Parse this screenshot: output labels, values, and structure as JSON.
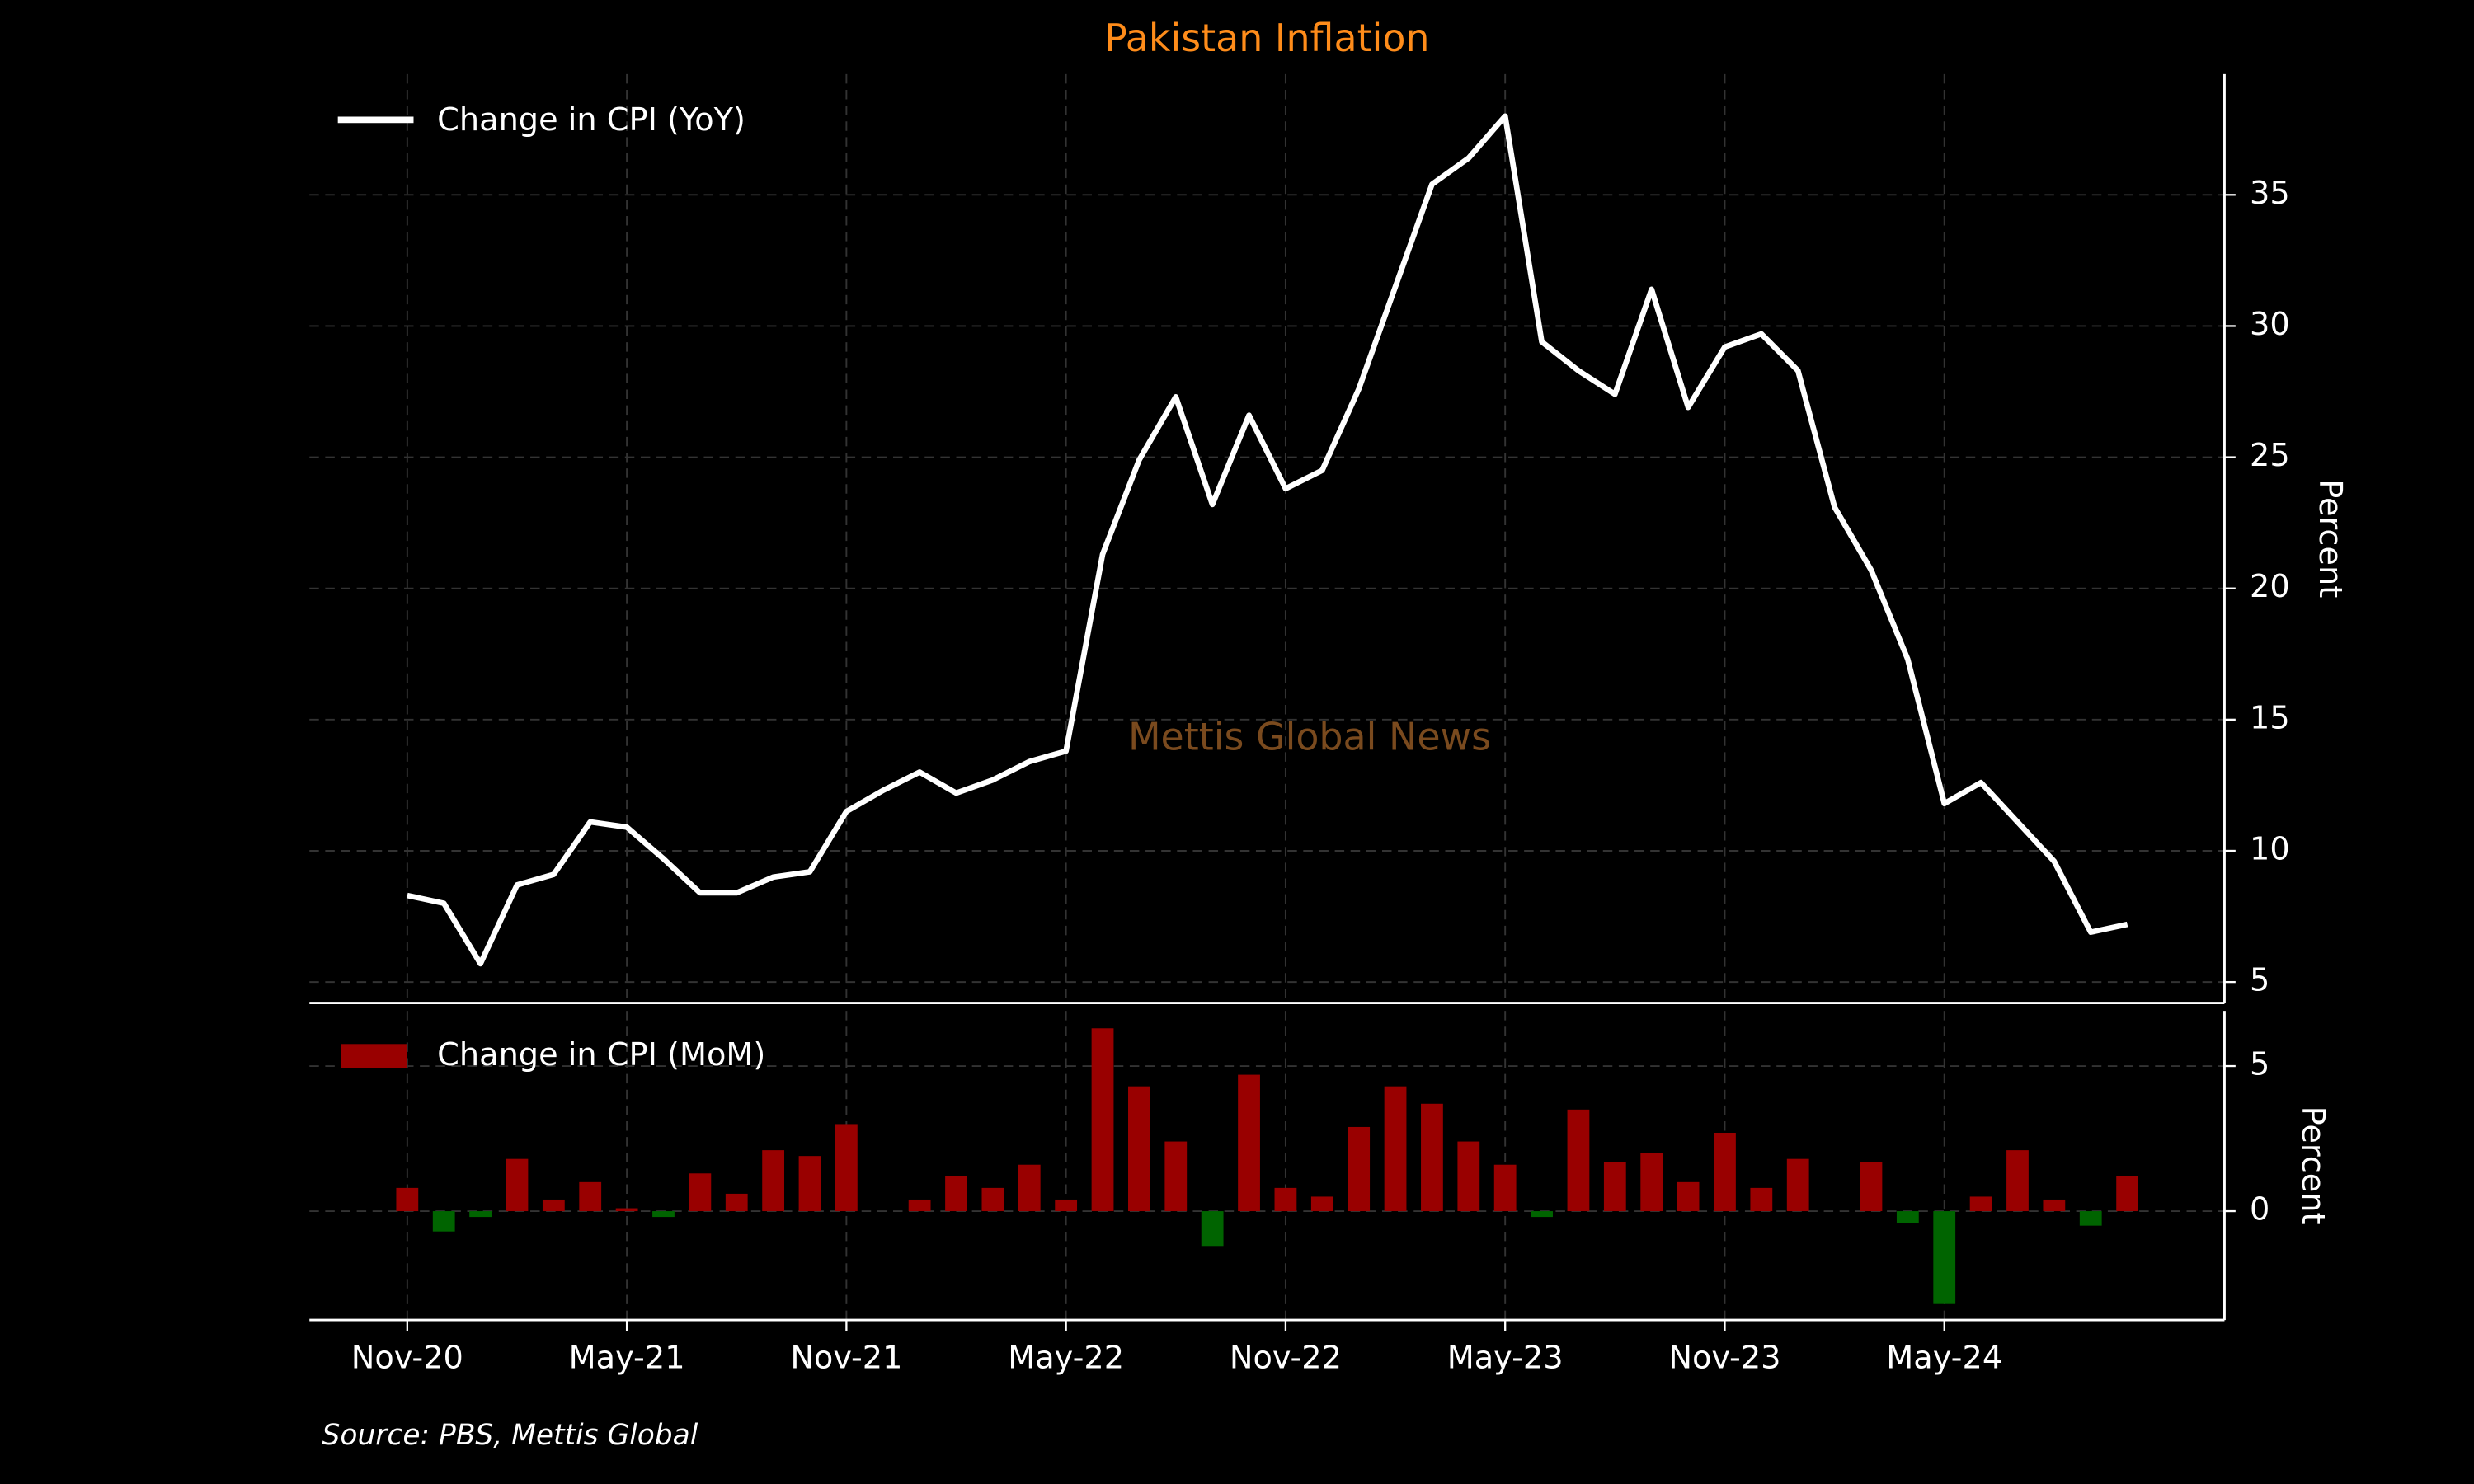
{
  "chart_data": [
    {
      "type": "line",
      "title": "Pakistan Inflation",
      "source": "Source: PBS, Mettis Global",
      "watermark": "Mettis Global News",
      "y_label": "Percent",
      "categories": [
        "Nov-20",
        null,
        null,
        null,
        null,
        null,
        "May-21",
        null,
        null,
        null,
        null,
        null,
        "Nov-21",
        null,
        null,
        null,
        null,
        null,
        "May-22",
        null,
        null,
        null,
        null,
        null,
        "Nov-22",
        null,
        null,
        null,
        null,
        null,
        "May-23",
        null,
        null,
        null,
        null,
        null,
        "Nov-23",
        null,
        null,
        null,
        null,
        null,
        "May-24",
        null,
        null,
        null,
        null,
        null
      ],
      "series": [
        {
          "name": "Change in CPI (YoY)",
          "color": "#ffffff",
          "values": [
            8.3,
            8.0,
            5.7,
            8.7,
            9.1,
            11.1,
            10.9,
            9.7,
            8.4,
            8.4,
            9.0,
            9.2,
            11.5,
            12.3,
            13.0,
            12.2,
            12.7,
            13.4,
            13.8,
            21.3,
            24.9,
            27.3,
            23.2,
            26.6,
            23.8,
            24.5,
            27.6,
            31.5,
            35.4,
            36.4,
            38.0,
            29.4,
            28.3,
            27.4,
            31.4,
            26.9,
            29.2,
            29.7,
            28.3,
            23.1,
            20.7,
            17.3,
            11.8,
            12.6,
            11.1,
            9.6,
            6.9,
            7.2
          ]
        }
      ],
      "ylim": [
        4.2,
        39.6
      ],
      "yticks": [
        5,
        10,
        15,
        20,
        25,
        30,
        35
      ],
      "grid": true,
      "legend": "upper left"
    },
    {
      "type": "bar",
      "y_label": "Percent",
      "series": [
        {
          "name": "Change in CPI (MoM)",
          "color": "#990000",
          "negative_color": "#006400",
          "values": [
            0.8,
            -0.7,
            -0.2,
            1.8,
            0.4,
            1.0,
            0.1,
            -0.2,
            1.3,
            0.6,
            2.1,
            1.9,
            3.0,
            0.0,
            0.4,
            1.2,
            0.8,
            1.6,
            0.4,
            6.3,
            4.3,
            2.4,
            -1.2,
            4.7,
            0.8,
            0.5,
            2.9,
            4.3,
            3.7,
            2.4,
            1.6,
            -0.2,
            3.5,
            1.7,
            2.0,
            1.0,
            2.7,
            0.8,
            1.8,
            0.0,
            1.7,
            -0.4,
            -3.2,
            0.5,
            2.1,
            0.4,
            -0.5,
            1.2
          ]
        }
      ],
      "ylim": [
        -3.75,
        6.9
      ],
      "yticks": [
        0,
        5
      ],
      "grid": true,
      "legend": "upper left"
    }
  ]
}
